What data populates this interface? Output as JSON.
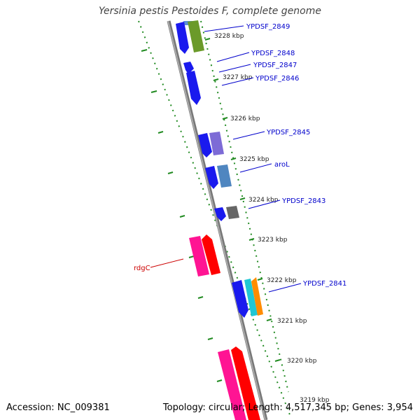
{
  "title": "Yersinia pestis Pestoides F, complete genome",
  "footer": {
    "accession": "Accession: NC_009381",
    "summary": "Topology: circular; Length: 4,517,345 bp; Genes: 3,954"
  },
  "colors": {
    "backbone": "#888888",
    "tick": "#228b22",
    "label_link": "#0000cc",
    "rdgC_label": "#cc0000"
  },
  "scale_ticks": [
    {
      "name": "tick-3228",
      "label": "3228 kbp"
    },
    {
      "name": "tick-3227",
      "label": "3227 kbp"
    },
    {
      "name": "tick-3226",
      "label": "3226 kbp"
    },
    {
      "name": "tick-3225",
      "label": "3225 kbp"
    },
    {
      "name": "tick-3224",
      "label": "3224 kbp"
    },
    {
      "name": "tick-3223",
      "label": "3223 kbp"
    },
    {
      "name": "tick-3222",
      "label": "3222 kbp"
    },
    {
      "name": "tick-3221",
      "label": "3221 kbp"
    },
    {
      "name": "tick-3220",
      "label": "3220 kbp"
    },
    {
      "name": "tick-3219",
      "label": "3219 kbp"
    }
  ],
  "gene_labels": [
    {
      "name": "ypdsf-2849",
      "text": "YPDSF_2849"
    },
    {
      "name": "ypdsf-2848",
      "text": "YPDSF_2848"
    },
    {
      "name": "ypdsf-2847",
      "text": "YPDSF_2847"
    },
    {
      "name": "ypdsf-2846",
      "text": "YPDSF_2846"
    },
    {
      "name": "ypdsf-2845",
      "text": "YPDSF_2845"
    },
    {
      "name": "arol",
      "text": "aroL"
    },
    {
      "name": "ypdsf-2843",
      "text": "YPDSF_2843"
    },
    {
      "name": "ypdsf-2841",
      "text": "YPDSF_2841"
    },
    {
      "name": "rdgc",
      "text": "rdgC"
    }
  ]
}
